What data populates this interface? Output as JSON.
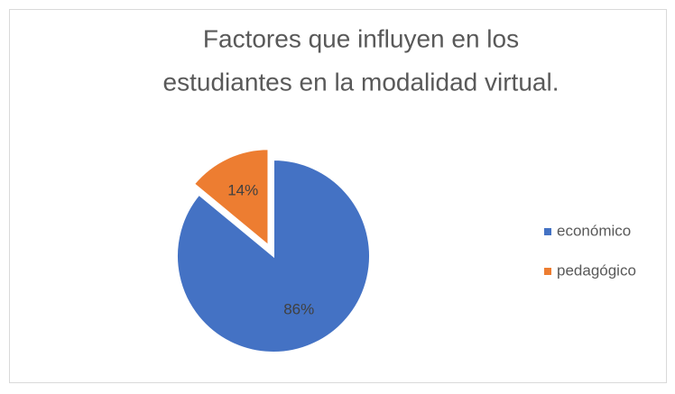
{
  "chart_data": {
    "type": "pie",
    "title": [
      "Factores que influyen en los",
      "estudiantes en la modalidad virtual."
    ],
    "categories": [
      "económico",
      "pedagógico"
    ],
    "values": [
      86,
      14
    ],
    "value_labels": [
      "86%",
      "14%"
    ],
    "colors": [
      "#4472c4",
      "#ed7d31"
    ],
    "legend": "right"
  }
}
